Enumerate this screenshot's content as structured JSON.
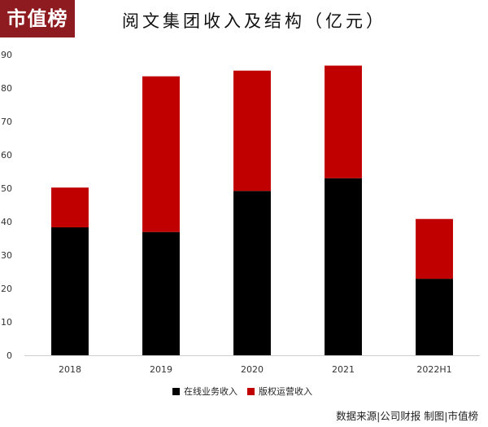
{
  "brand": {
    "logo_text": "市值榜",
    "color": "#8e1b1f"
  },
  "chart_data": {
    "type": "bar",
    "stacked": true,
    "title": "阅文集团收入及结构（亿元）",
    "xlabel": "",
    "ylabel": "",
    "categories": [
      "2018",
      "2019",
      "2020",
      "2021",
      "2022H1"
    ],
    "series": [
      {
        "name": "在线业务收入",
        "color": "#000000",
        "values": [
          38.3,
          36.9,
          49.2,
          53.0,
          22.9
        ]
      },
      {
        "name": "版权运营收入",
        "color": "#c00000",
        "values": [
          11.9,
          46.6,
          36.0,
          33.7,
          17.9
        ]
      }
    ],
    "ylim": [
      0,
      90
    ],
    "yticks": [
      0,
      10,
      20,
      30,
      40,
      50,
      60,
      70,
      80,
      90
    ],
    "grid": false,
    "legend_position": "bottom"
  },
  "footer": {
    "source": "数据来源|公司财报   制图|市值榜"
  }
}
